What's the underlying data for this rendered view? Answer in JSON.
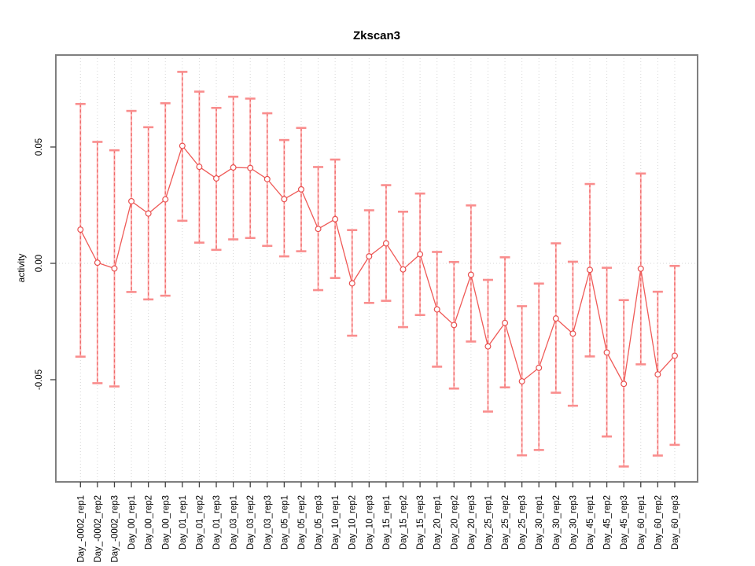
{
  "chart_data": {
    "type": "line",
    "title": "Zkscan3",
    "xlabel": "",
    "ylabel": "activity",
    "legend": "none",
    "grid": "vertical-dotted-per-category-plus-dotted-zero-line",
    "categories": [
      "Day_-0002_rep1",
      "Day_-0002_rep2",
      "Day_-0002_rep3",
      "Day_00_rep1",
      "Day_00_rep2",
      "Day_00_rep3",
      "Day_01_rep1",
      "Day_01_rep2",
      "Day_01_rep3",
      "Day_03_rep1",
      "Day_03_rep2",
      "Day_03_rep3",
      "Day_05_rep1",
      "Day_05_rep2",
      "Day_05_rep3",
      "Day_10_rep1",
      "Day_10_rep2",
      "Day_10_rep3",
      "Day_15_rep1",
      "Day_15_rep2",
      "Day_15_rep3",
      "Day_20_rep1",
      "Day_20_rep2",
      "Day_20_rep3",
      "Day_25_rep1",
      "Day_25_rep2",
      "Day_25_rep3",
      "Day_30_rep1",
      "Day_30_rep2",
      "Day_30_rep3",
      "Day_45_rep1",
      "Day_45_rep2",
      "Day_45_rep3",
      "Day_60_rep1",
      "Day_60_rep2",
      "Day_60_rep3"
    ],
    "series": [
      {
        "name": "activity",
        "values": [
          0.0145,
          0.0003,
          -0.0022,
          0.0267,
          0.0214,
          0.0275,
          0.0505,
          0.0415,
          0.0365,
          0.0412,
          0.041,
          0.0362,
          0.0276,
          0.0318,
          0.0148,
          0.019,
          -0.0086,
          0.003,
          0.0086,
          -0.0026,
          0.0039,
          -0.0198,
          -0.0265,
          -0.0049,
          -0.0357,
          -0.0256,
          -0.0507,
          -0.0449,
          -0.0237,
          -0.0302,
          -0.0028,
          -0.0383,
          -0.0518,
          -0.0023,
          -0.0477,
          -0.0397
        ],
        "lower": [
          -0.0401,
          -0.0515,
          -0.0529,
          -0.0123,
          -0.0155,
          -0.0139,
          0.0183,
          0.0089,
          0.0058,
          0.0103,
          0.0109,
          0.0075,
          0.003,
          0.0052,
          -0.0115,
          -0.0063,
          -0.0311,
          -0.017,
          -0.0161,
          -0.0274,
          -0.0222,
          -0.0444,
          -0.0538,
          -0.0336,
          -0.0637,
          -0.0533,
          -0.0825,
          -0.0802,
          -0.0556,
          -0.0612,
          -0.04,
          -0.0744,
          -0.0873,
          -0.0434,
          -0.0826,
          -0.078
        ],
        "upper": [
          0.0685,
          0.0522,
          0.0486,
          0.0655,
          0.0585,
          0.0688,
          0.0823,
          0.0738,
          0.0668,
          0.0716,
          0.0708,
          0.0645,
          0.053,
          0.0582,
          0.0414,
          0.0446,
          0.0143,
          0.0228,
          0.0336,
          0.0222,
          0.03,
          0.0049,
          0.0006,
          0.0249,
          -0.0071,
          0.0026,
          -0.0184,
          -0.0087,
          0.0086,
          0.0007,
          0.0341,
          -0.0019,
          -0.0158,
          0.0386,
          -0.0122,
          -0.0011
        ]
      }
    ],
    "ytick_labels": [
      "0.05",
      "0.00",
      "-0.05"
    ],
    "yticks": [
      0.05,
      0.0,
      -0.05
    ],
    "ylim": [
      -0.094,
      0.0895
    ],
    "colors": {
      "errorbar_body": "#ffb3b3",
      "errorbar_dash": "#ee6a6a",
      "errorbar_cap": "#f98d8d",
      "series_line": "#ef5a57",
      "marker_stroke": "#e85050",
      "gridline": "#d6d6d6",
      "panel_border": "#7f7f7f",
      "tick": "#404040",
      "text": "#000000"
    }
  }
}
